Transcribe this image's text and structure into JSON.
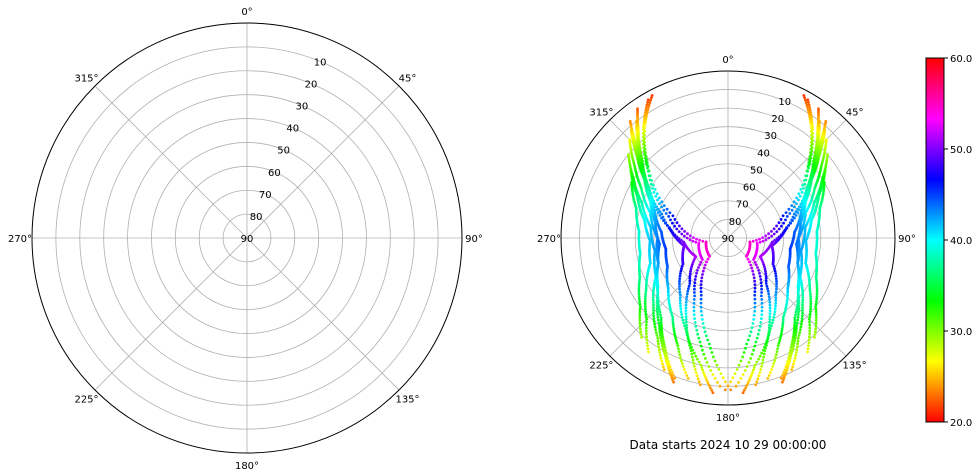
{
  "chart_data": [
    {
      "type": "polar",
      "angle_ticks": [
        "0°",
        "45°",
        "90°",
        "135°",
        "180°",
        "225°",
        "270°",
        "315°"
      ],
      "radial_ticks": [
        "10",
        "20",
        "30",
        "40",
        "50",
        "60",
        "70",
        "80",
        "90"
      ],
      "rlim": [
        0,
        90
      ],
      "grid": true,
      "points": []
    },
    {
      "type": "scatter",
      "projection": "polar",
      "angle_ticks": [
        "0°",
        "45°",
        "90°",
        "135°",
        "180°",
        "225°",
        "270°",
        "315°"
      ],
      "radial_ticks": [
        "10",
        "20",
        "30",
        "40",
        "50",
        "60",
        "70",
        "80",
        "90"
      ],
      "rlim": [
        0,
        90
      ],
      "grid": true,
      "annotation": "Data starts 2024 10 29 00:00:00",
      "colorbar": {
        "ticks": [
          "20.0",
          "30.0",
          "40.0",
          "50.0",
          "60.0"
        ],
        "range": [
          20,
          60
        ],
        "colormap": [
          "#ff0000",
          "#ffff00",
          "#00ff00",
          "#00ffff",
          "#0000ff",
          "#ff00ff",
          "#ff0000"
        ]
      },
      "tracks": [
        {
          "az": [
            40,
            44,
            50,
            58,
            70,
            85,
            100,
            115,
            130,
            145,
            155,
            165
          ],
          "el": [
            8,
            18,
            30,
            40,
            48,
            54,
            56,
            54,
            48,
            38,
            26,
            10
          ]
        },
        {
          "az": [
            42,
            48,
            55,
            65,
            78,
            95,
            110,
            125,
            140,
            150,
            160
          ],
          "el": [
            12,
            24,
            35,
            44,
            50,
            53,
            50,
            44,
            34,
            22,
            8
          ]
        },
        {
          "az": [
            35,
            40,
            48,
            60,
            80,
            100,
            120,
            140,
            155,
            168,
            175
          ],
          "el": [
            5,
            15,
            28,
            42,
            58,
            66,
            62,
            50,
            36,
            20,
            5
          ]
        },
        {
          "az": [
            45,
            52,
            60,
            72,
            90,
            110,
            128,
            142,
            152,
            160
          ],
          "el": [
            15,
            26,
            36,
            46,
            52,
            50,
            42,
            30,
            18,
            6
          ]
        },
        {
          "az": [
            38,
            45,
            55,
            70,
            95,
            120,
            140,
            152,
            162,
            170
          ],
          "el": [
            10,
            22,
            36,
            52,
            66,
            70,
            58,
            42,
            26,
            8
          ]
        },
        {
          "az": [
            50,
            58,
            68,
            82,
            100,
            118,
            132,
            145,
            155
          ],
          "el": [
            20,
            30,
            40,
            48,
            50,
            46,
            36,
            24,
            10
          ]
        },
        {
          "az": [
            30,
            38,
            50,
            70,
            100,
            130,
            150,
            165,
            178
          ],
          "el": [
            4,
            16,
            34,
            56,
            74,
            72,
            54,
            32,
            8
          ]
        },
        {
          "az": [
            55,
            65,
            78,
            92,
            108,
            122,
            135,
            146
          ],
          "el": [
            26,
            36,
            44,
            48,
            46,
            38,
            28,
            14
          ]
        },
        {
          "az": [
            60,
            72,
            86,
            100,
            114,
            128,
            140
          ],
          "el": [
            30,
            38,
            42,
            42,
            38,
            30,
            18
          ]
        },
        {
          "az": [
            28,
            36,
            48,
            68,
            100,
            135,
            155,
            170,
            182
          ],
          "el": [
            3,
            14,
            32,
            58,
            78,
            76,
            56,
            32,
            6
          ]
        },
        {
          "az": [
            320,
            316,
            310,
            302,
            290,
            275,
            260,
            245,
            230,
            215,
            205,
            195
          ],
          "el": [
            8,
            18,
            30,
            40,
            48,
            54,
            56,
            54,
            48,
            38,
            26,
            10
          ]
        },
        {
          "az": [
            318,
            312,
            305,
            295,
            282,
            265,
            250,
            235,
            220,
            210,
            200
          ],
          "el": [
            12,
            24,
            35,
            44,
            50,
            53,
            50,
            44,
            34,
            22,
            8
          ]
        },
        {
          "az": [
            325,
            320,
            312,
            300,
            280,
            260,
            240,
            220,
            205,
            192,
            185
          ],
          "el": [
            5,
            15,
            28,
            42,
            58,
            66,
            62,
            50,
            36,
            20,
            5
          ]
        },
        {
          "az": [
            315,
            308,
            300,
            288,
            270,
            250,
            232,
            218,
            208,
            200
          ],
          "el": [
            15,
            26,
            36,
            46,
            52,
            50,
            42,
            30,
            18,
            6
          ]
        },
        {
          "az": [
            322,
            315,
            305,
            290,
            265,
            240,
            220,
            208,
            198,
            190
          ],
          "el": [
            10,
            22,
            36,
            52,
            66,
            70,
            58,
            42,
            26,
            8
          ]
        },
        {
          "az": [
            310,
            302,
            292,
            278,
            260,
            242,
            228,
            215,
            205
          ],
          "el": [
            20,
            30,
            40,
            48,
            50,
            46,
            36,
            24,
            10
          ]
        },
        {
          "az": [
            330,
            322,
            310,
            290,
            260,
            230,
            210,
            195,
            182
          ],
          "el": [
            4,
            16,
            34,
            56,
            74,
            72,
            54,
            32,
            8
          ]
        },
        {
          "az": [
            305,
            295,
            282,
            268,
            252,
            238,
            225,
            214
          ],
          "el": [
            26,
            36,
            44,
            48,
            46,
            38,
            28,
            14
          ]
        },
        {
          "az": [
            300,
            288,
            274,
            260,
            246,
            232,
            220
          ],
          "el": [
            30,
            38,
            42,
            42,
            38,
            30,
            18
          ]
        },
        {
          "az": [
            332,
            324,
            312,
            292,
            260,
            225,
            205,
            190,
            178
          ],
          "el": [
            3,
            14,
            32,
            58,
            78,
            76,
            56,
            32,
            6
          ]
        }
      ]
    }
  ]
}
